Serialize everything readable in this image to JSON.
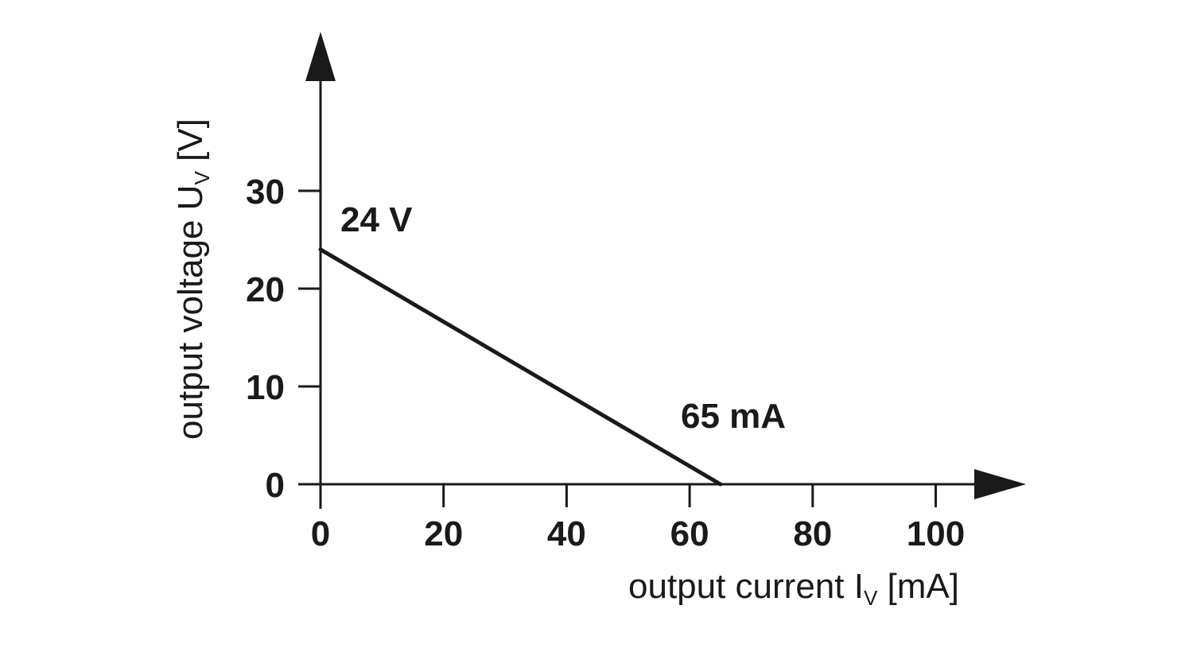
{
  "chart_data": {
    "type": "line",
    "x_ticks": [
      0,
      20,
      40,
      60,
      80,
      100
    ],
    "y_ticks": [
      0,
      10,
      20,
      30
    ],
    "x": [
      0,
      65
    ],
    "y": [
      24,
      0
    ],
    "xlim": [
      0,
      100
    ],
    "ylim": [
      0,
      30
    ],
    "grid": false,
    "xlabel": {
      "main": "output current I",
      "sub": "V",
      "unit": " [mA]"
    },
    "ylabel": {
      "main": "output voltage U",
      "sub": "V",
      "unit": " [V]"
    },
    "annotations": [
      {
        "text": "24 V",
        "x": 0,
        "y": 24
      },
      {
        "text": "65 mA",
        "x": 65,
        "y": 0
      }
    ],
    "colors": {
      "ink": "#1a1a1a",
      "background": "#ffffff"
    }
  }
}
